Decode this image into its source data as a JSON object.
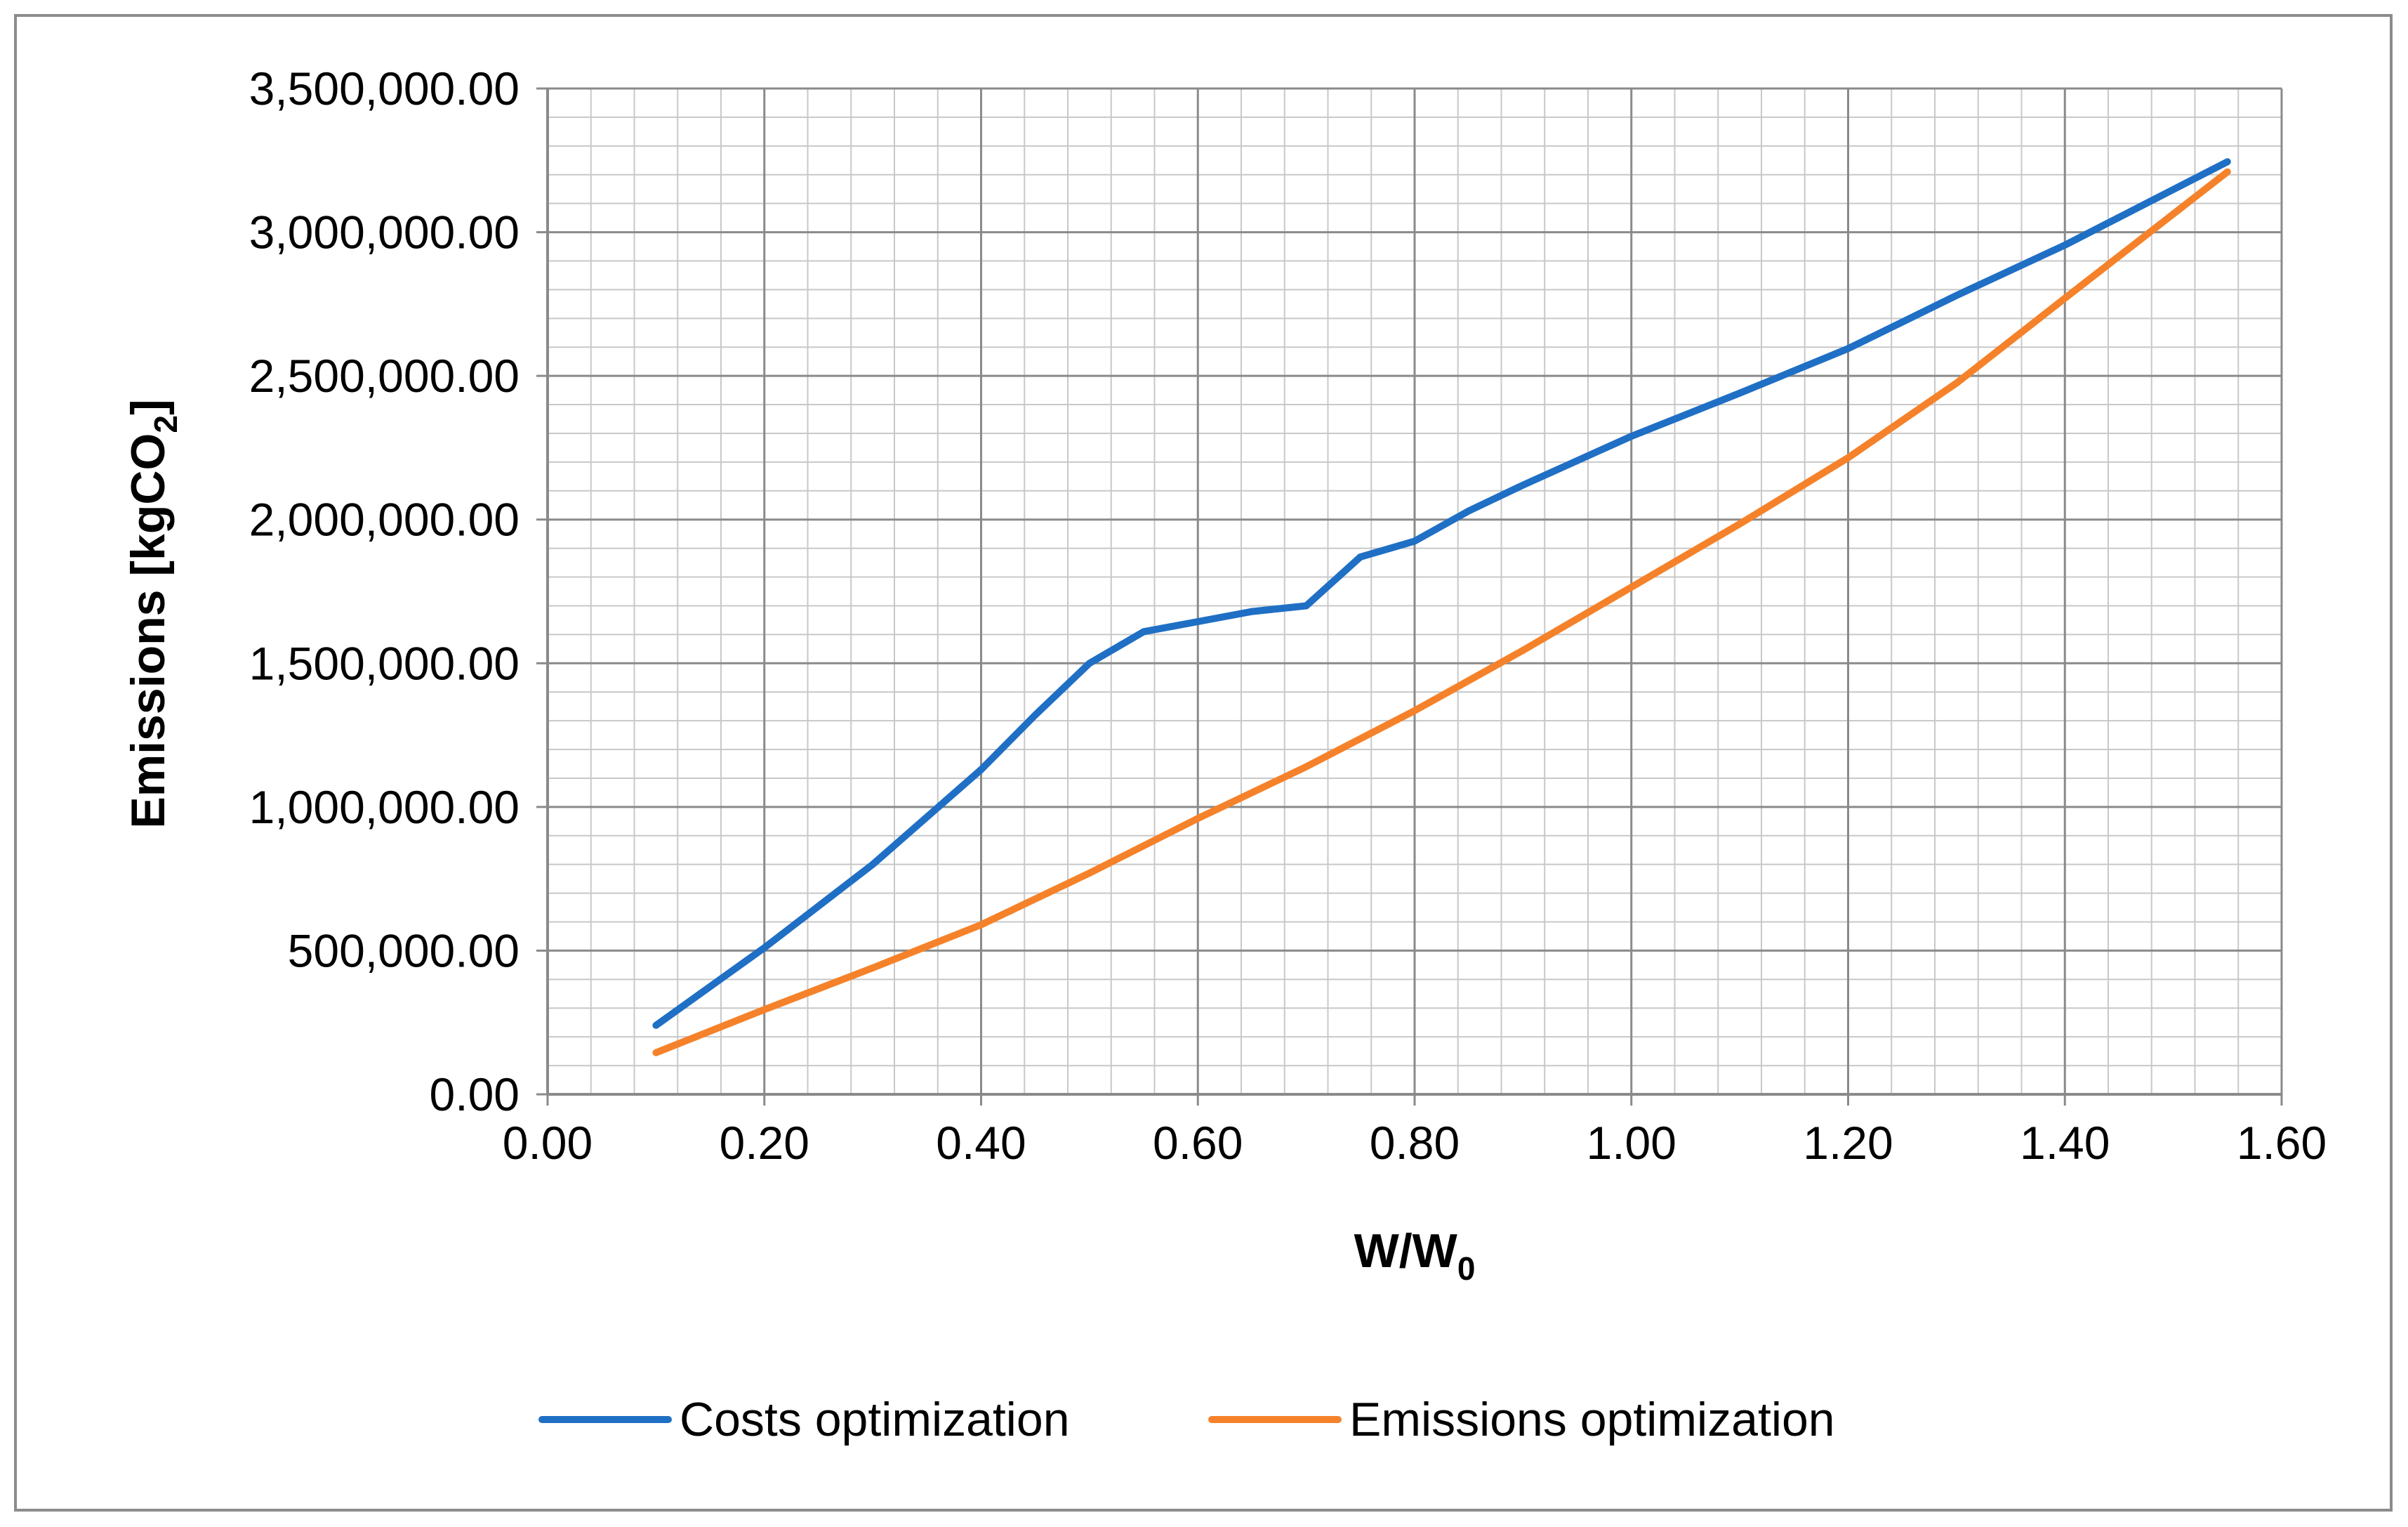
{
  "chart_data": {
    "type": "line",
    "title": "",
    "xlabel": "W/W",
    "xlabel_subscript": "0",
    "ylabel": "Emissions [kgCO",
    "ylabel_subscript": "2",
    "ylabel_suffix": "]",
    "xlim": [
      0.0,
      1.6
    ],
    "ylim": [
      0,
      3500000
    ],
    "x_ticks": [
      0.0,
      0.2,
      0.4,
      0.6,
      0.8,
      1.0,
      1.2,
      1.4,
      1.6
    ],
    "x_tick_labels": [
      "0.00",
      "0.20",
      "0.40",
      "0.60",
      "0.80",
      "1.00",
      "1.20",
      "1.40",
      "1.60"
    ],
    "y_ticks": [
      0,
      500000,
      1000000,
      1500000,
      2000000,
      2500000,
      3000000,
      3500000
    ],
    "y_tick_labels": [
      "0.00",
      "500,000.00",
      "1,000,000.00",
      "1,500,000.00",
      "2,000,000.00",
      "2,500,000.00",
      "3,000,000.00",
      "3,500,000.00"
    ],
    "grid": true,
    "minor_grid_x_step": 0.04,
    "minor_grid_y_step": 100000,
    "legend_position": "bottom",
    "series": [
      {
        "name": "Costs optimization",
        "color": "#1f6fc5",
        "points": [
          [
            0.1,
            240000
          ],
          [
            0.2,
            510000
          ],
          [
            0.3,
            800000
          ],
          [
            0.4,
            1130000
          ],
          [
            0.45,
            1320000
          ],
          [
            0.5,
            1500000
          ],
          [
            0.55,
            1610000
          ],
          [
            0.6,
            1645000
          ],
          [
            0.65,
            1680000
          ],
          [
            0.7,
            1700000
          ],
          [
            0.75,
            1870000
          ],
          [
            0.8,
            1925000
          ],
          [
            0.85,
            2030000
          ],
          [
            0.9,
            2120000
          ],
          [
            1.0,
            2290000
          ],
          [
            1.1,
            2440000
          ],
          [
            1.2,
            2595000
          ],
          [
            1.3,
            2780000
          ],
          [
            1.4,
            2955000
          ],
          [
            1.55,
            3245000
          ]
        ]
      },
      {
        "name": "Emissions optimization",
        "color": "#f5822a",
        "points": [
          [
            0.1,
            145000
          ],
          [
            0.2,
            295000
          ],
          [
            0.3,
            440000
          ],
          [
            0.4,
            590000
          ],
          [
            0.5,
            770000
          ],
          [
            0.6,
            960000
          ],
          [
            0.7,
            1140000
          ],
          [
            0.8,
            1335000
          ],
          [
            0.9,
            1545000
          ],
          [
            1.0,
            1765000
          ],
          [
            1.1,
            1985000
          ],
          [
            1.2,
            2215000
          ],
          [
            1.3,
            2475000
          ],
          [
            1.4,
            2770000
          ],
          [
            1.55,
            3210000
          ]
        ]
      }
    ]
  }
}
